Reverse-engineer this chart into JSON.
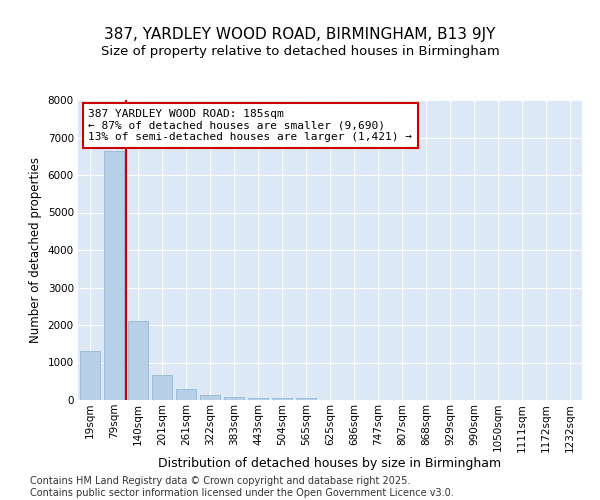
{
  "title": "387, YARDLEY WOOD ROAD, BIRMINGHAM, B13 9JY",
  "subtitle": "Size of property relative to detached houses in Birmingham",
  "xlabel": "Distribution of detached houses by size in Birmingham",
  "ylabel": "Number of detached properties",
  "categories": [
    "19sqm",
    "79sqm",
    "140sqm",
    "201sqm",
    "261sqm",
    "322sqm",
    "383sqm",
    "443sqm",
    "504sqm",
    "565sqm",
    "625sqm",
    "686sqm",
    "747sqm",
    "807sqm",
    "868sqm",
    "929sqm",
    "990sqm",
    "1050sqm",
    "1111sqm",
    "1172sqm",
    "1232sqm"
  ],
  "values": [
    1310,
    6650,
    2100,
    680,
    300,
    130,
    70,
    50,
    50,
    50,
    0,
    0,
    0,
    0,
    0,
    0,
    0,
    0,
    0,
    0,
    0
  ],
  "bar_color": "#b8cfe8",
  "bar_edge_color": "#8ab0d0",
  "vline_color": "#cc0000",
  "annotation_text": "387 YARDLEY WOOD ROAD: 185sqm\n← 87% of detached houses are smaller (9,690)\n13% of semi-detached houses are larger (1,421) →",
  "annotation_box_color": "#cc0000",
  "ylim": [
    0,
    8000
  ],
  "yticks": [
    0,
    1000,
    2000,
    3000,
    4000,
    5000,
    6000,
    7000,
    8000
  ],
  "fig_bg_color": "#ffffff",
  "plot_bg_color": "#dce8f5",
  "grid_color": "#ffffff",
  "footer": "Contains HM Land Registry data © Crown copyright and database right 2025.\nContains public sector information licensed under the Open Government Licence v3.0.",
  "title_fontsize": 11,
  "subtitle_fontsize": 9.5,
  "xlabel_fontsize": 9,
  "ylabel_fontsize": 8.5,
  "tick_fontsize": 7.5,
  "annotation_fontsize": 8,
  "footer_fontsize": 7
}
